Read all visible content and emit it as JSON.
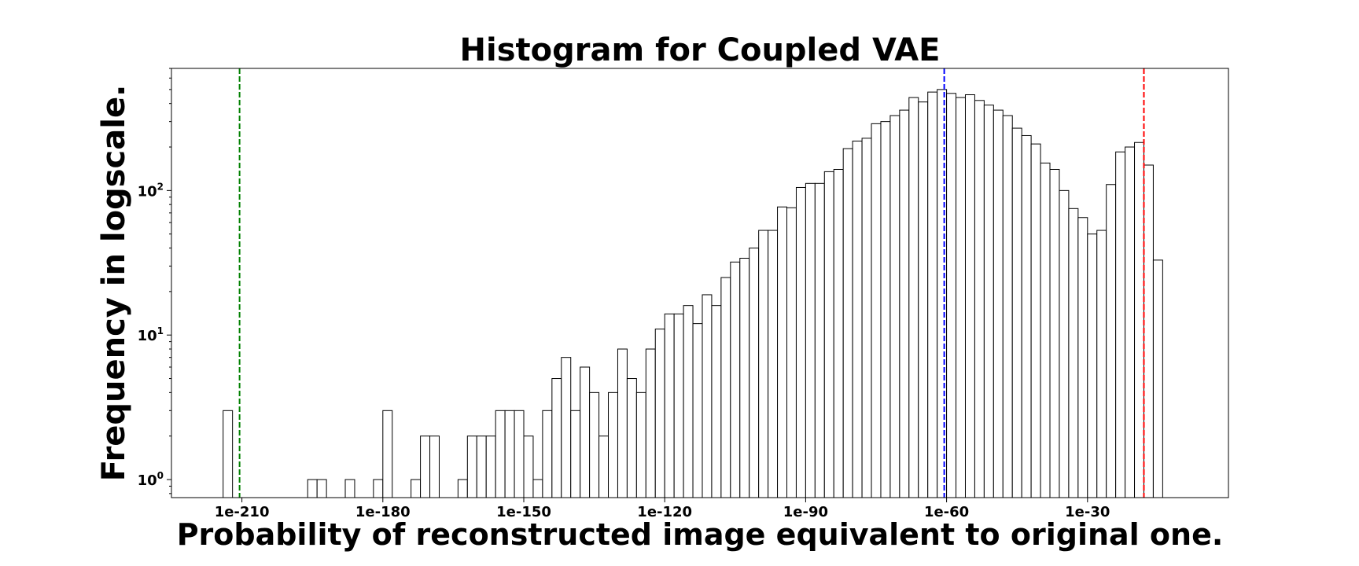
{
  "chart_data": {
    "type": "bar",
    "title": "Histogram for Coupled VAE",
    "xlabel": "Probability of reconstructed image equivalent to original one.",
    "ylabel": "Frequency in logscale.",
    "yscale": "log",
    "grid": false,
    "xlim": [
      -225,
      0
    ],
    "ylim": [
      0.75,
      700
    ],
    "x_ticks": [
      {
        "value": -210,
        "label": "1e-210"
      },
      {
        "value": -180,
        "label": "1e-180"
      },
      {
        "value": -150,
        "label": "1e-150"
      },
      {
        "value": -120,
        "label": "1e-120"
      },
      {
        "value": -90,
        "label": "1e-90"
      },
      {
        "value": -60,
        "label": "1e-60"
      },
      {
        "value": -30,
        "label": "1e-30"
      }
    ],
    "y_ticks": [
      {
        "value": 1,
        "base": "10",
        "exp": "0"
      },
      {
        "value": 10,
        "base": "10",
        "exp": "1"
      },
      {
        "value": 100,
        "base": "10",
        "exp": "2"
      }
    ],
    "bin_start": -214,
    "bin_width": 2,
    "counts": [
      3,
      0,
      0,
      0,
      0,
      0,
      0,
      0,
      0,
      1,
      1,
      0,
      0,
      1,
      0,
      0,
      1,
      3,
      0,
      0,
      1,
      2,
      2,
      0,
      0,
      1,
      2,
      2,
      2,
      3,
      3,
      3,
      2,
      1,
      3,
      5,
      7,
      3,
      6,
      4,
      2,
      4,
      8,
      5,
      4,
      8,
      11,
      14,
      14,
      16,
      12,
      19,
      16,
      25,
      32,
      34,
      40,
      53,
      53,
      77,
      76,
      105,
      112,
      112,
      135,
      140,
      195,
      220,
      230,
      290,
      300,
      330,
      360,
      440,
      410,
      480,
      500,
      470,
      440,
      460,
      420,
      390,
      360,
      330,
      270,
      240,
      210,
      155,
      140,
      100,
      75,
      65,
      50,
      53,
      110,
      185,
      200,
      215,
      150,
      33
    ],
    "ref_lines": [
      {
        "x": -210.5,
        "color": "#008000"
      },
      {
        "x": -60.5,
        "color": "#0000ff"
      },
      {
        "x": -18,
        "color": "#ff0000"
      }
    ]
  }
}
